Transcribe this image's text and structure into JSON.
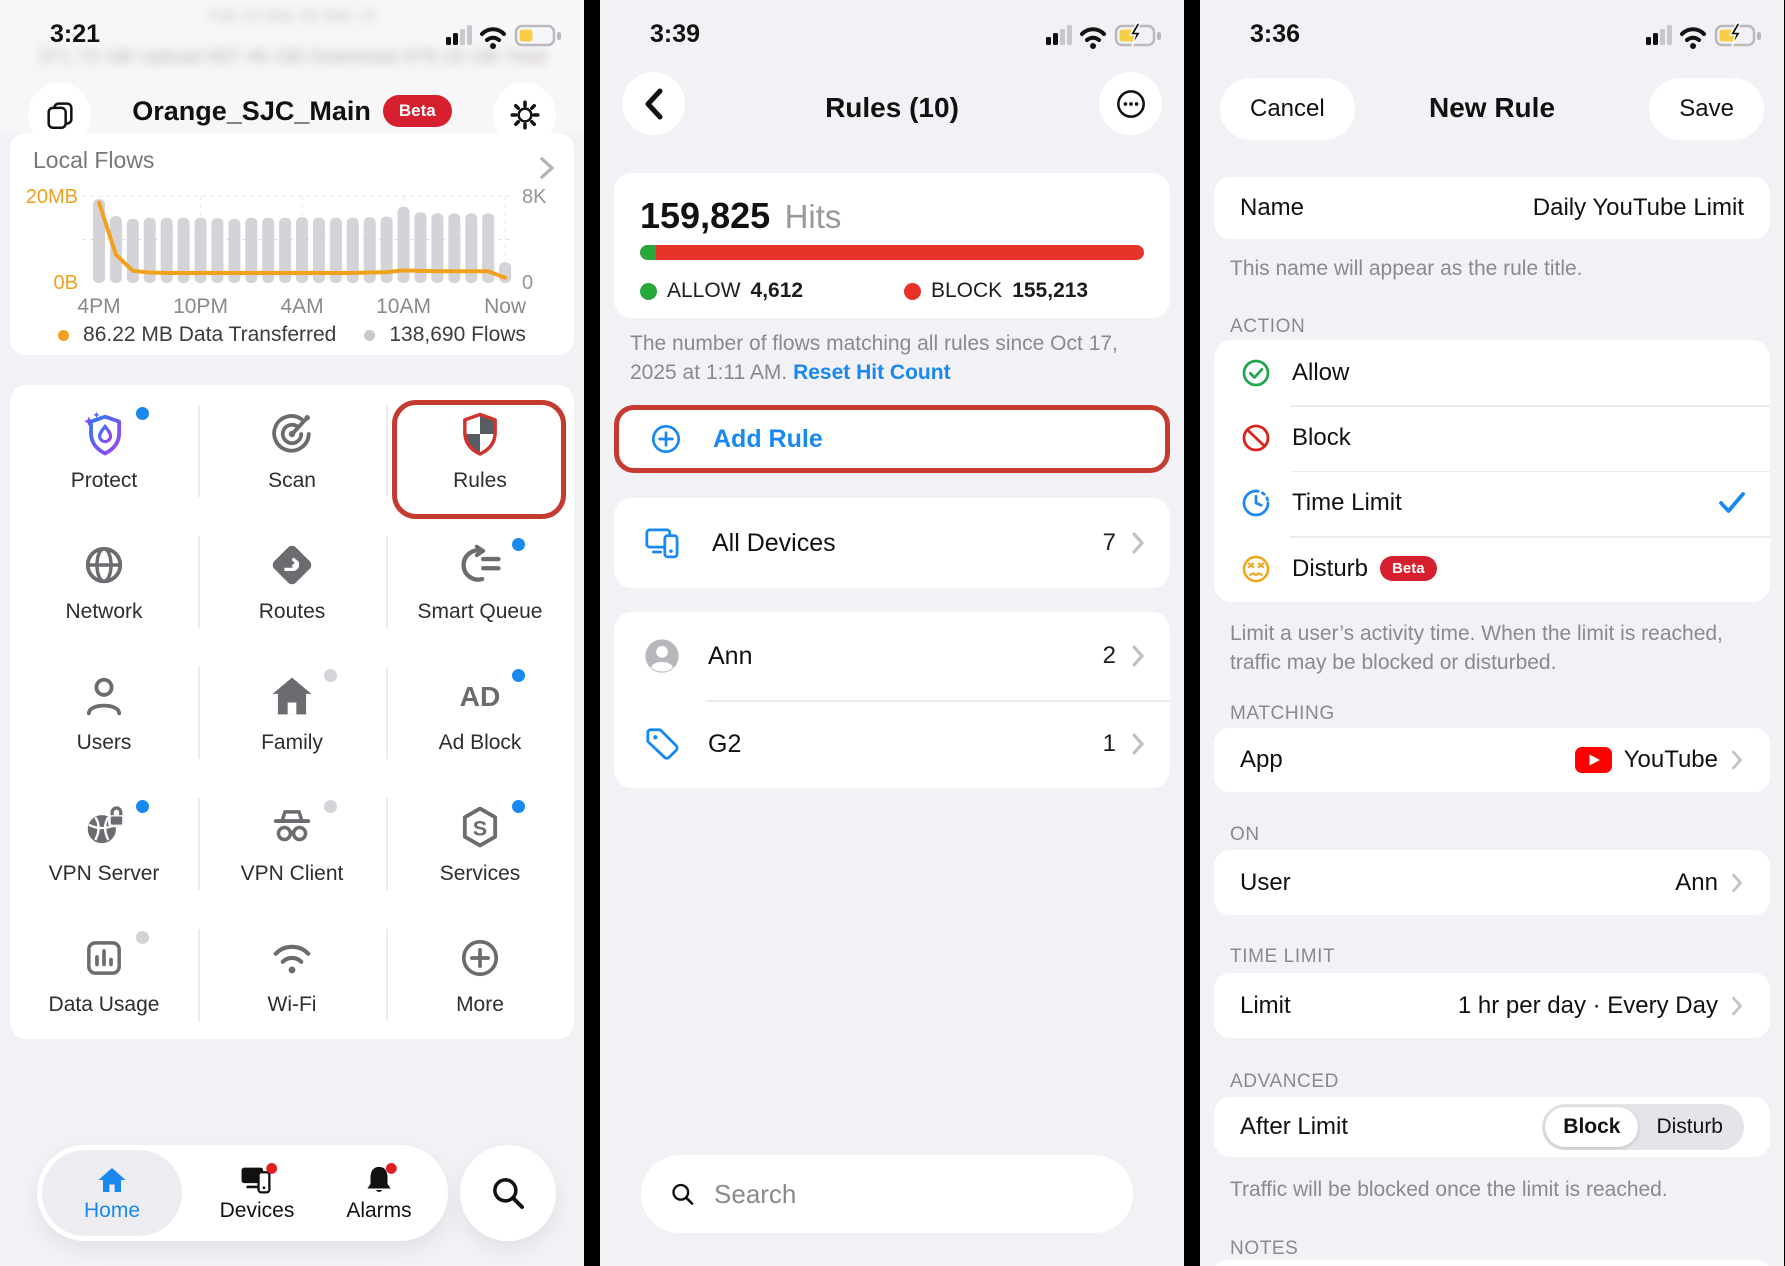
{
  "colors": {
    "accent_blue": "#1988f0",
    "highlight_red": "#c53b30",
    "beta_red": "#d7202f",
    "allow_green": "#27a83c",
    "block_red": "#d6271f",
    "disturb_yellow": "#f0a71c",
    "youtube_red": "#fe0000",
    "chart_orange": "#f1a11d",
    "chart_bar_gray": "#d3d3d8"
  },
  "chart_data": {
    "type": "bar+line",
    "title": "Local Flows",
    "x_tick_labels": [
      "4PM",
      "10PM",
      "4AM",
      "10AM",
      "Now"
    ],
    "x_tick_indices": [
      0,
      6,
      12,
      18,
      24
    ],
    "left_axis": {
      "labels": [
        "20MB",
        "0B"
      ],
      "max_mb": 20
    },
    "right_axis": {
      "labels": [
        "8K",
        "0"
      ],
      "max_flows": 8000
    },
    "bars_flows": [
      7700,
      6150,
      5900,
      6000,
      6000,
      6000,
      6000,
      5950,
      5900,
      6000,
      6000,
      6000,
      6050,
      6000,
      6000,
      6000,
      6050,
      6100,
      7000,
      6500,
      6400,
      6400,
      6400,
      6400,
      1900
    ],
    "line_mb": [
      18.5,
      6.5,
      2.8,
      2.4,
      2.3,
      2.3,
      2.3,
      2.3,
      2.3,
      2.3,
      2.3,
      2.3,
      2.3,
      2.3,
      2.3,
      2.3,
      2.4,
      2.5,
      2.9,
      2.8,
      2.7,
      2.7,
      2.7,
      2.7,
      1.2
    ],
    "legend": [
      {
        "label": "86.22 MB Data Transferred",
        "color": "#f1a11d"
      },
      {
        "label": "138,690 Flows",
        "color": "#c9c9ce"
      }
    ]
  },
  "p1": {
    "time": "3:21",
    "blur_dates": "Feb 23          Mar 04          Mar 14",
    "blur_stats": "371.73 GB Upload    607.45 GB Download    978.18 GB Total",
    "title": "Orange_SJC_Main",
    "beta_badge": "Beta",
    "flows_title": "Local Flows",
    "grid": [
      {
        "label": "Protect"
      },
      {
        "label": "Scan"
      },
      {
        "label": "Rules"
      },
      {
        "label": "Network"
      },
      {
        "label": "Routes"
      },
      {
        "label": "Smart Queue"
      },
      {
        "label": "Users"
      },
      {
        "label": "Family"
      },
      {
        "label": "Ad Block"
      },
      {
        "label": "VPN Server"
      },
      {
        "label": "VPN Client"
      },
      {
        "label": "Services"
      },
      {
        "label": "Data Usage"
      },
      {
        "label": "Wi-Fi"
      },
      {
        "label": "More"
      }
    ],
    "tab_home": "Home",
    "tab_devices": "Devices",
    "tab_alarms": "Alarms"
  },
  "p2": {
    "time": "3:39",
    "title": "Rules (10)",
    "hits_value": "159,825",
    "hits_unit": "Hits",
    "allow_label": "ALLOW",
    "allow_value": "4,612",
    "block_label": "BLOCK",
    "block_value": "155,213",
    "hits_caption": "The number of flows matching all rules since Oct 17, 2025 at 1:11 AM.",
    "reset_link": "Reset Hit Count",
    "add_rule": "Add Rule",
    "all_devices": {
      "label": "All Devices",
      "count": "7"
    },
    "user_row": {
      "label": "Ann",
      "count": "2"
    },
    "group_row": {
      "label": "G2",
      "count": "1"
    },
    "search_placeholder": "Search"
  },
  "p3": {
    "time": "3:36",
    "cancel": "Cancel",
    "title": "New Rule",
    "save": "Save",
    "name_label": "Name",
    "name_value": "Daily YouTube Limit",
    "name_caption": "This name will appear as the rule title.",
    "section_action": "ACTION",
    "action_allow": "Allow",
    "action_block": "Block",
    "action_time": "Time Limit",
    "action_disturb": "Disturb",
    "disturb_beta": "Beta",
    "action_caption": "Limit a user’s activity time. When the limit is reached, traffic may be blocked or disturbed.",
    "section_matching": "MATCHING",
    "app_label": "App",
    "app_value": "YouTube",
    "section_on": "ON",
    "user_label": "User",
    "user_value": "Ann",
    "section_timelimit": "TIME LIMIT",
    "limit_label": "Limit",
    "limit_value": "1 hr per day · Every Day",
    "section_advanced": "ADVANCED",
    "after_label": "After Limit",
    "seg_block": "Block",
    "seg_disturb": "Disturb",
    "after_caption": "Traffic will be blocked once the limit is reached.",
    "section_notes": "NOTES"
  }
}
